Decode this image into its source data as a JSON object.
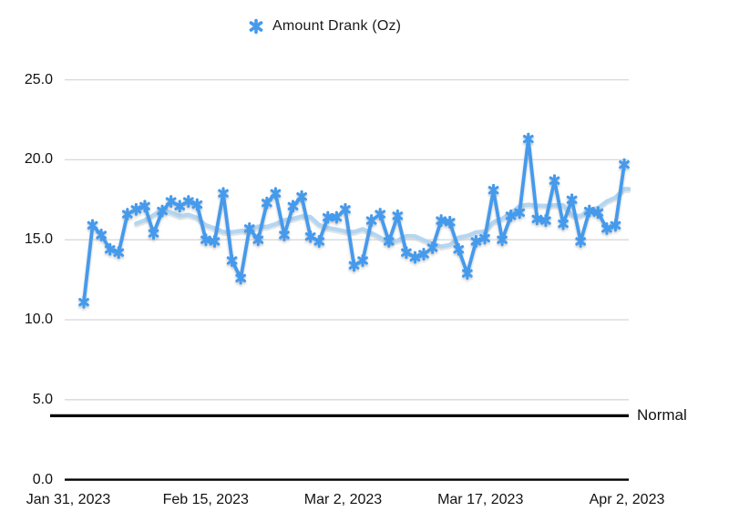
{
  "chart_data": {
    "type": "line",
    "title": "",
    "legend": {
      "label": "Amount Drank (Oz)",
      "position": "top-center",
      "marker": "asterisk-icon"
    },
    "x": {
      "tick_labels": [
        "Jan 31, 2023",
        "Feb 15, 2023",
        "Mar 2, 2023",
        "Mar 17, 2023",
        "Apr 2, 2023"
      ],
      "tick_day_offsets": [
        0,
        15,
        30,
        45,
        61
      ],
      "total_days": 61
    },
    "y": {
      "tick_labels": [
        "25.0",
        "20.0",
        "15.0",
        "10.0",
        "5.0",
        "0.0"
      ],
      "min": 0,
      "max": 25,
      "grid": true
    },
    "series": [
      {
        "name": "Amount Drank (Oz)",
        "color": "#459aec",
        "marker": "asterisk",
        "values": [
          11.1,
          15.9,
          15.3,
          14.4,
          14.2,
          16.6,
          16.9,
          17.1,
          15.4,
          16.8,
          17.4,
          17.1,
          17.4,
          17.2,
          15.0,
          14.9,
          17.9,
          13.7,
          12.6,
          15.7,
          15.0,
          17.3,
          17.9,
          15.3,
          17.1,
          17.7,
          15.2,
          14.9,
          16.4,
          16.4,
          16.9,
          13.4,
          13.7,
          16.2,
          16.6,
          14.9,
          16.5,
          14.2,
          13.9,
          14.1,
          14.5,
          16.2,
          16.1,
          14.4,
          12.9,
          14.9,
          15.1,
          18.1,
          15.0,
          16.5,
          16.7,
          21.3,
          16.3,
          16.2,
          18.7,
          16.0,
          17.5,
          14.9,
          16.8,
          16.7,
          15.7,
          15.9,
          19.7
        ]
      }
    ],
    "trendline": {
      "visible": true,
      "color": "#b4d6f1",
      "window": 9
    },
    "normal_line": {
      "label": "Normal",
      "value": 4.0,
      "color": "#000000"
    },
    "colors": {
      "grid": "#d8d8d8",
      "axis": "#000000",
      "text": "#111111",
      "background": "#ffffff"
    }
  }
}
